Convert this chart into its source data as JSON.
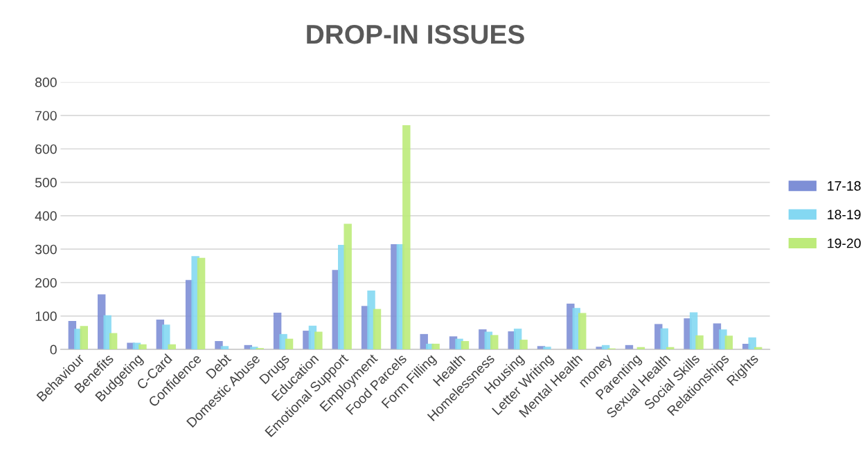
{
  "chart_data": {
    "type": "bar",
    "title": "DROP-IN ISSUES",
    "categories": [
      "Behaviour",
      "Benefits",
      "Budgeting",
      "C-Card",
      "Confidence",
      "Debt",
      "Domestic Abuse",
      "Drugs",
      "Education",
      "Emotional Support",
      "Employment",
      "Food Parcels",
      "Form Filling",
      "Health",
      "Homelessness",
      "Housing",
      "Letter Writing",
      "Mental Health",
      "money",
      "Parenting",
      "Sexual Health",
      "Social Skills",
      "Relationships",
      "Rights"
    ],
    "series": [
      {
        "name": "17-18",
        "color": "#7e8fd6",
        "values": [
          85,
          165,
          20,
          89,
          208,
          25,
          13,
          110,
          56,
          238,
          130,
          315,
          46,
          39,
          60,
          54,
          10,
          137,
          8,
          13,
          76,
          93,
          78,
          17
        ]
      },
      {
        "name": "18-19",
        "color": "#84d8f2",
        "values": [
          62,
          102,
          20,
          74,
          279,
          10,
          8,
          46,
          71,
          313,
          176,
          315,
          17,
          32,
          53,
          62,
          8,
          124,
          13,
          0,
          63,
          111,
          60,
          36
        ]
      },
      {
        "name": "19-20",
        "color": "#bdeb7a",
        "values": [
          70,
          49,
          15,
          15,
          274,
          null,
          4,
          32,
          53,
          376,
          121,
          671,
          17,
          25,
          43,
          29,
          null,
          109,
          3,
          7,
          7,
          42,
          41,
          7
        ]
      }
    ],
    "ylim": [
      0,
      800
    ],
    "yticks": [
      0,
      100,
      200,
      300,
      400,
      500,
      600,
      700,
      800
    ],
    "grid": "y",
    "legend": "right"
  }
}
